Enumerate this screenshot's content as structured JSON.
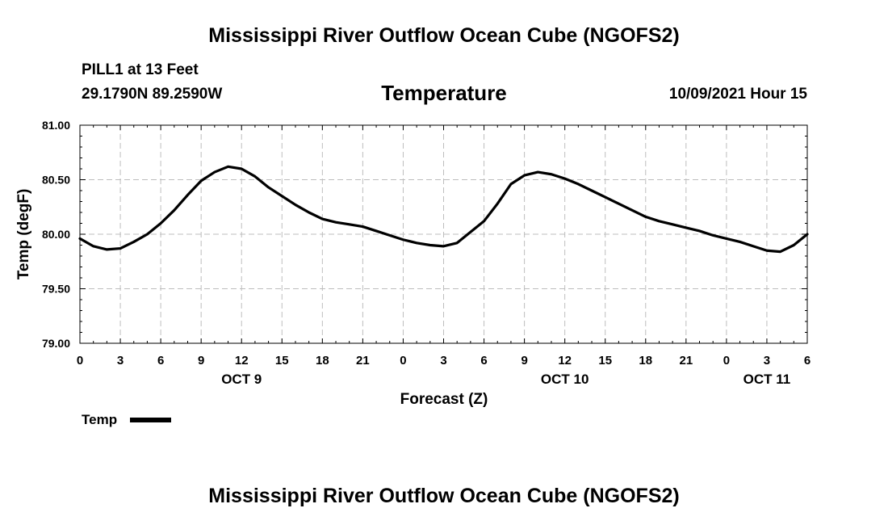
{
  "header": {
    "title": "Mississippi River Outflow Ocean Cube (NGOFS2)",
    "station": "PILL1 at 13 Feet",
    "coords": "29.1790N  89.2590W",
    "plot_title": "Temperature",
    "timestamp": "10/09/2021 Hour 15"
  },
  "footer": {
    "title": "Mississippi River Outflow Ocean Cube (NGOFS2)"
  },
  "chart_data": {
    "type": "line",
    "title": "Temperature",
    "xlabel": "Forecast (Z)",
    "ylabel": "Temp (degF)",
    "ylim": [
      79.0,
      81.0
    ],
    "xlim": [
      0,
      54
    ],
    "grid": true,
    "x_tick_labels": [
      "0",
      "3",
      "6",
      "9",
      "12",
      "15",
      "18",
      "21",
      "0",
      "3",
      "6",
      "9",
      "12",
      "15",
      "18",
      "21",
      "0",
      "3",
      "6"
    ],
    "y_tick_labels": [
      "79.00",
      "79.50",
      "80.00",
      "80.50",
      "81.00"
    ],
    "y_ticks": [
      79.0,
      79.5,
      80.0,
      80.5,
      81.0
    ],
    "day_labels": [
      {
        "text": "OCT 9",
        "hour": 12
      },
      {
        "text": "OCT 10",
        "hour": 36
      },
      {
        "text": "OCT 11",
        "hour": 51
      }
    ],
    "legend": {
      "label": "Temp",
      "placement": "bottom-left"
    },
    "series": [
      {
        "name": "Temp",
        "color": "#000000",
        "x": [
          0,
          1,
          2,
          3,
          4,
          5,
          6,
          7,
          8,
          9,
          10,
          11,
          12,
          13,
          14,
          15,
          16,
          17,
          18,
          19,
          20,
          21,
          22,
          23,
          24,
          25,
          26,
          27,
          28,
          29,
          30,
          31,
          32,
          33,
          34,
          35,
          36,
          37,
          38,
          39,
          40,
          41,
          42,
          43,
          44,
          45,
          46,
          47,
          48,
          49,
          50,
          51,
          52,
          53,
          54
        ],
        "values": [
          79.96,
          79.89,
          79.86,
          79.87,
          79.93,
          80.0,
          80.1,
          80.22,
          80.36,
          80.49,
          80.57,
          80.62,
          80.6,
          80.53,
          80.43,
          80.35,
          80.27,
          80.2,
          80.14,
          80.11,
          80.09,
          80.07,
          80.03,
          79.99,
          79.95,
          79.92,
          79.9,
          79.89,
          79.92,
          80.02,
          80.12,
          80.28,
          80.46,
          80.54,
          80.57,
          80.55,
          80.51,
          80.46,
          80.4,
          80.34,
          80.28,
          80.22,
          80.16,
          80.12,
          80.09,
          80.06,
          80.03,
          79.99,
          79.96,
          79.93,
          79.89,
          79.85,
          79.84,
          79.9,
          80.0
        ]
      }
    ]
  }
}
